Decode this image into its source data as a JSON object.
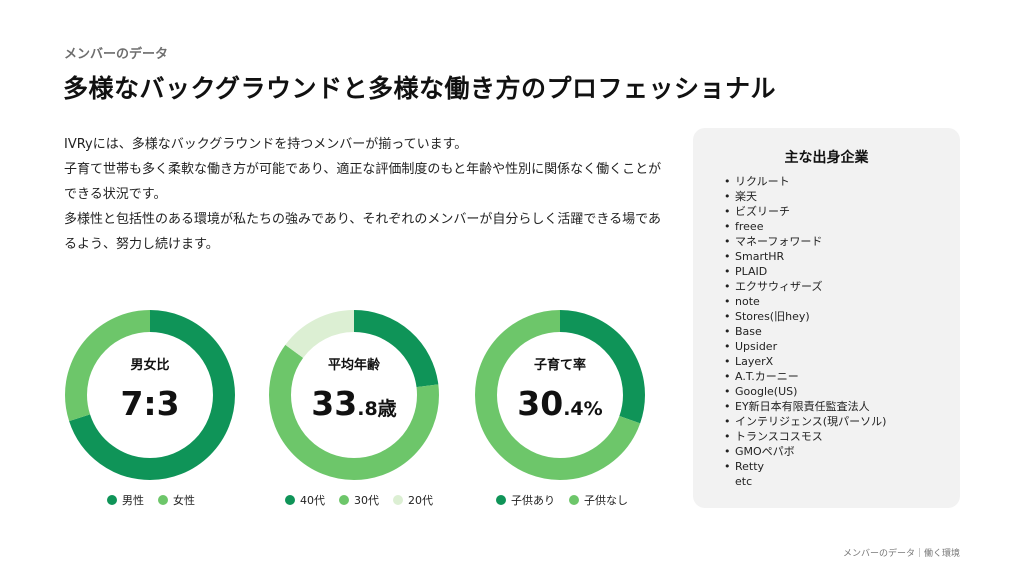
{
  "kicker": "メンバーのデータ",
  "title": "多様なバックグラウンドと多様な働き方のプロフェッショナル",
  "intro": [
    "IVRyには、多様なバックグラウンドを持つメンバーが揃っています。",
    "子育て世帯も多く柔軟な働き方が可能であり、適正な評価制度のもと年齢や性別に関係なく働くことができる状況です。",
    "多様性と包括性のある環境が私たちの強みであり、それぞれのメンバーが自分らしく活躍できる場であるよう、努力し続けます。"
  ],
  "panel": {
    "title": "主な出身企業",
    "companies": [
      "リクルート",
      "楽天",
      "ビズリーチ",
      "freee",
      "マネーフォワード",
      "SmartHR",
      "PLAID",
      "エクサウィザーズ",
      "note",
      "Stores(旧hey)",
      "Base",
      "Upsider",
      "LayerX",
      "A.T.カーニー",
      "Google(US)",
      "EY新日本有限責任監査法人",
      "インテリジェンス(現パーソル)",
      "トランスコスモス",
      "GMOペパボ",
      "Retty"
    ],
    "more": "etc"
  },
  "colors": {
    "dark": "#0f9458",
    "mid": "#6dc66a",
    "light": "#dcefd3"
  },
  "chart_data": [
    {
      "type": "pie",
      "title": "男女比",
      "display_value": {
        "main": "7:3",
        "small": ""
      },
      "categories": [
        "男性",
        "女性"
      ],
      "values": [
        70,
        30
      ]
    },
    {
      "type": "pie",
      "title": "平均年齢",
      "display_value": {
        "main": "33",
        "small": ".8歳"
      },
      "categories": [
        "40代",
        "30代",
        "20代"
      ],
      "values": [
        23,
        62,
        15
      ]
    },
    {
      "type": "pie",
      "title": "子育て率",
      "display_value": {
        "main": "30",
        "small": ".4%"
      },
      "categories": [
        "子供あり",
        "子供なし"
      ],
      "values": [
        30.4,
        69.6
      ]
    }
  ],
  "footer": "メンバーのデータ｜働く環境"
}
